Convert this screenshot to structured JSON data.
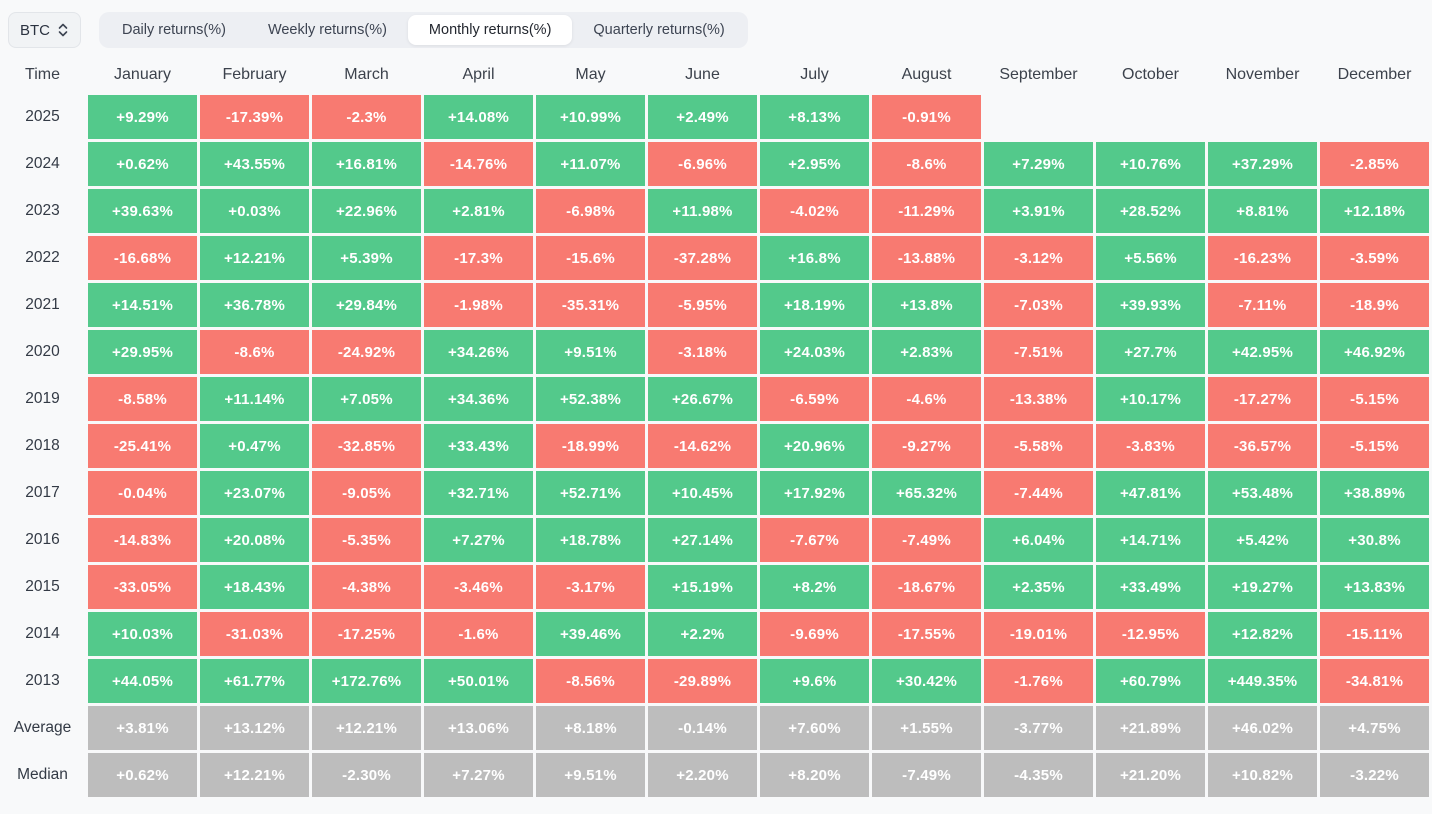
{
  "selector": {
    "value": "BTC",
    "icon": "updown-chevron-icon"
  },
  "tabs": {
    "items": [
      {
        "label": "Daily returns(%)",
        "active": false
      },
      {
        "label": "Weekly returns(%)",
        "active": false
      },
      {
        "label": "Monthly returns(%)",
        "active": true
      },
      {
        "label": "Quarterly returns(%)",
        "active": false
      }
    ]
  },
  "colors": {
    "positive": "#53c98b",
    "negative": "#f87a71",
    "summary": "#bdbdbd"
  },
  "table": {
    "time_header": "Time",
    "months": [
      "January",
      "February",
      "March",
      "April",
      "May",
      "June",
      "July",
      "August",
      "September",
      "October",
      "November",
      "December"
    ],
    "rows": [
      {
        "label": "2025",
        "type": "year",
        "cells": [
          "+9.29%",
          "-17.39%",
          "-2.3%",
          "+14.08%",
          "+10.99%",
          "+2.49%",
          "+8.13%",
          "-0.91%",
          "",
          "",
          "",
          ""
        ]
      },
      {
        "label": "2024",
        "type": "year",
        "cells": [
          "+0.62%",
          "+43.55%",
          "+16.81%",
          "-14.76%",
          "+11.07%",
          "-6.96%",
          "+2.95%",
          "-8.6%",
          "+7.29%",
          "+10.76%",
          "+37.29%",
          "-2.85%"
        ]
      },
      {
        "label": "2023",
        "type": "year",
        "cells": [
          "+39.63%",
          "+0.03%",
          "+22.96%",
          "+2.81%",
          "-6.98%",
          "+11.98%",
          "-4.02%",
          "-11.29%",
          "+3.91%",
          "+28.52%",
          "+8.81%",
          "+12.18%"
        ]
      },
      {
        "label": "2022",
        "type": "year",
        "cells": [
          "-16.68%",
          "+12.21%",
          "+5.39%",
          "-17.3%",
          "-15.6%",
          "-37.28%",
          "+16.8%",
          "-13.88%",
          "-3.12%",
          "+5.56%",
          "-16.23%",
          "-3.59%"
        ]
      },
      {
        "label": "2021",
        "type": "year",
        "cells": [
          "+14.51%",
          "+36.78%",
          "+29.84%",
          "-1.98%",
          "-35.31%",
          "-5.95%",
          "+18.19%",
          "+13.8%",
          "-7.03%",
          "+39.93%",
          "-7.11%",
          "-18.9%"
        ]
      },
      {
        "label": "2020",
        "type": "year",
        "cells": [
          "+29.95%",
          "-8.6%",
          "-24.92%",
          "+34.26%",
          "+9.51%",
          "-3.18%",
          "+24.03%",
          "+2.83%",
          "-7.51%",
          "+27.7%",
          "+42.95%",
          "+46.92%"
        ]
      },
      {
        "label": "2019",
        "type": "year",
        "cells": [
          "-8.58%",
          "+11.14%",
          "+7.05%",
          "+34.36%",
          "+52.38%",
          "+26.67%",
          "-6.59%",
          "-4.6%",
          "-13.38%",
          "+10.17%",
          "-17.27%",
          "-5.15%"
        ]
      },
      {
        "label": "2018",
        "type": "year",
        "cells": [
          "-25.41%",
          "+0.47%",
          "-32.85%",
          "+33.43%",
          "-18.99%",
          "-14.62%",
          "+20.96%",
          "-9.27%",
          "-5.58%",
          "-3.83%",
          "-36.57%",
          "-5.15%"
        ]
      },
      {
        "label": "2017",
        "type": "year",
        "cells": [
          "-0.04%",
          "+23.07%",
          "-9.05%",
          "+32.71%",
          "+52.71%",
          "+10.45%",
          "+17.92%",
          "+65.32%",
          "-7.44%",
          "+47.81%",
          "+53.48%",
          "+38.89%"
        ]
      },
      {
        "label": "2016",
        "type": "year",
        "cells": [
          "-14.83%",
          "+20.08%",
          "-5.35%",
          "+7.27%",
          "+18.78%",
          "+27.14%",
          "-7.67%",
          "-7.49%",
          "+6.04%",
          "+14.71%",
          "+5.42%",
          "+30.8%"
        ]
      },
      {
        "label": "2015",
        "type": "year",
        "cells": [
          "-33.05%",
          "+18.43%",
          "-4.38%",
          "-3.46%",
          "-3.17%",
          "+15.19%",
          "+8.2%",
          "-18.67%",
          "+2.35%",
          "+33.49%",
          "+19.27%",
          "+13.83%"
        ]
      },
      {
        "label": "2014",
        "type": "year",
        "cells": [
          "+10.03%",
          "-31.03%",
          "-17.25%",
          "-1.6%",
          "+39.46%",
          "+2.2%",
          "-9.69%",
          "-17.55%",
          "-19.01%",
          "-12.95%",
          "+12.82%",
          "-15.11%"
        ]
      },
      {
        "label": "2013",
        "type": "year",
        "cells": [
          "+44.05%",
          "+61.77%",
          "+172.76%",
          "+50.01%",
          "-8.56%",
          "-29.89%",
          "+9.6%",
          "+30.42%",
          "-1.76%",
          "+60.79%",
          "+449.35%",
          "-34.81%"
        ]
      },
      {
        "label": "Average",
        "type": "summary",
        "cells": [
          "+3.81%",
          "+13.12%",
          "+12.21%",
          "+13.06%",
          "+8.18%",
          "-0.14%",
          "+7.60%",
          "+1.55%",
          "-3.77%",
          "+21.89%",
          "+46.02%",
          "+4.75%"
        ]
      },
      {
        "label": "Median",
        "type": "summary",
        "cells": [
          "+0.62%",
          "+12.21%",
          "-2.30%",
          "+7.27%",
          "+9.51%",
          "+2.20%",
          "+8.20%",
          "-7.49%",
          "-4.35%",
          "+21.20%",
          "+10.82%",
          "-3.22%"
        ]
      }
    ]
  }
}
